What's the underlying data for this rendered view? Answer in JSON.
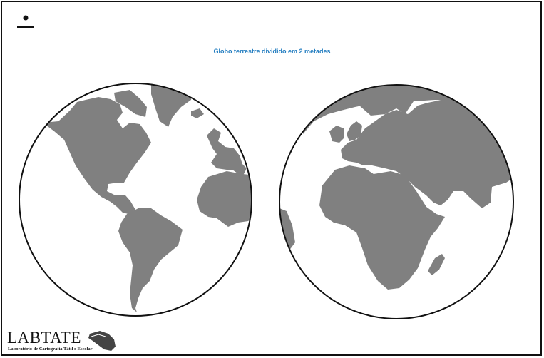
{
  "map": {
    "title": "Globo terrestre dividido em 2 metades",
    "land_color": "#808080",
    "ocean_color": "#ffffff",
    "outline_color": "#111111",
    "hemispheres": [
      "western",
      "eastern"
    ]
  },
  "logo": {
    "name": "LABTATE",
    "subtitle": "Laboratório de Cartografia Tátil e Escolar",
    "icon": "hand-icon"
  },
  "symbol": {
    "icon": "dot-over-line-icon"
  }
}
